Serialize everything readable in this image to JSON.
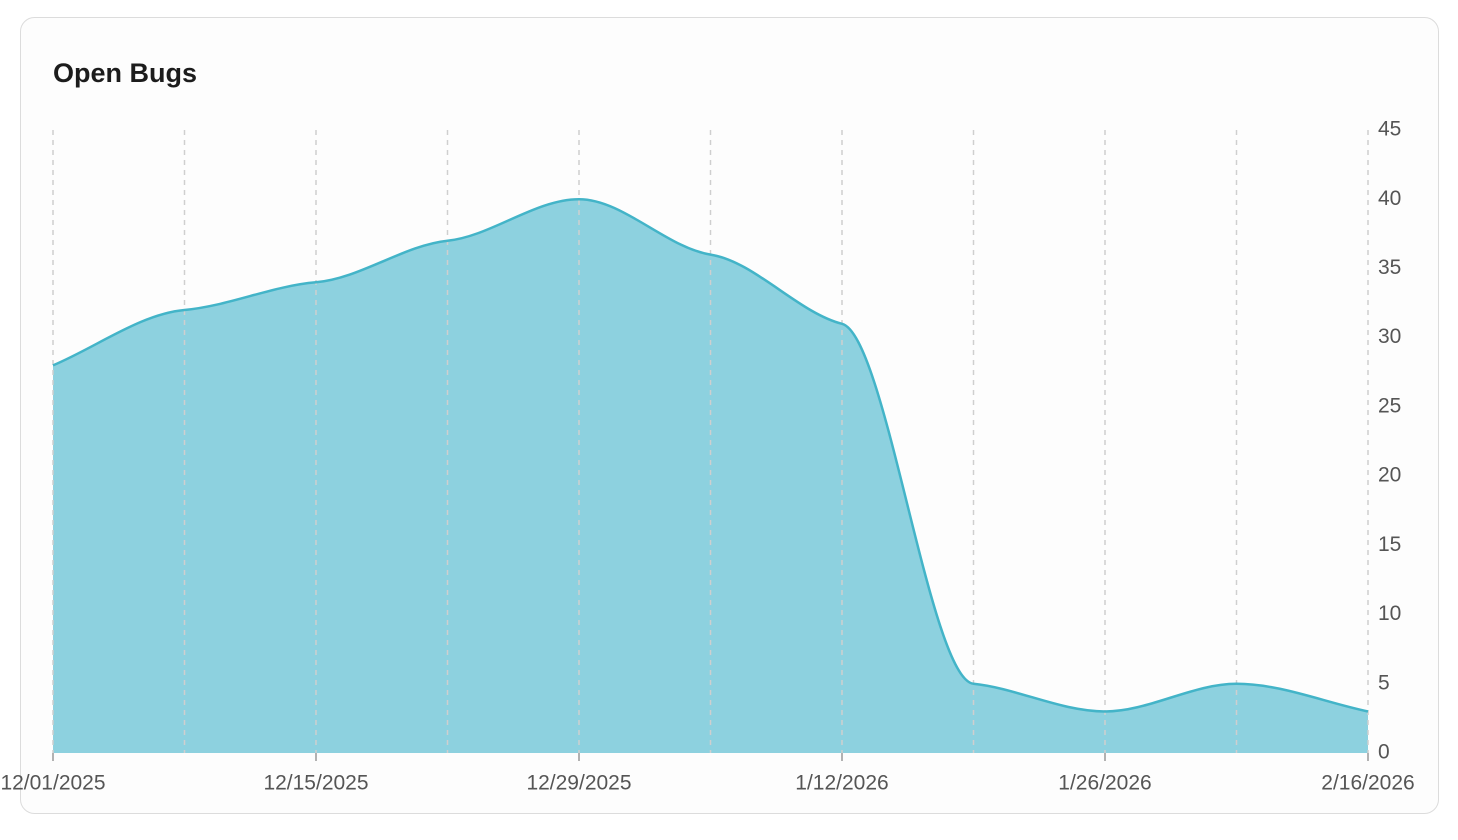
{
  "chart_data": {
    "type": "area",
    "title": "Open Bugs",
    "categories": [
      "12/01/2025",
      null,
      "12/15/2025",
      null,
      "12/29/2025",
      null,
      "1/12/2026",
      null,
      "1/26/2026",
      null,
      "2/16/2026"
    ],
    "values": [
      28,
      32,
      34,
      37,
      40,
      36,
      31,
      5,
      3,
      5,
      3
    ],
    "color": "#43b4c8",
    "fill": "#8dd1df",
    "ylim": [
      0,
      45
    ],
    "yticks": [
      0,
      5,
      10,
      15,
      20,
      25,
      30,
      35,
      40,
      45
    ],
    "grid": true
  }
}
